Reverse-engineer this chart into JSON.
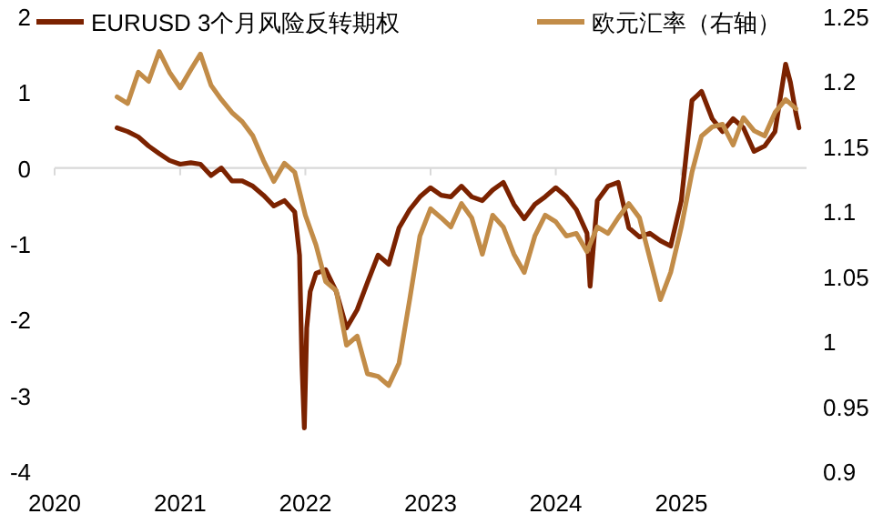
{
  "chart_data": {
    "type": "line",
    "legend": "top",
    "xlim": [
      "2020-01-01",
      "2026-01-01"
    ],
    "xticks": [
      "2020",
      "2021",
      "2022",
      "2023",
      "2024",
      "2025"
    ],
    "ylim": [
      -4,
      2
    ],
    "yticks": [
      -4,
      -3,
      -2,
      -1,
      0,
      1,
      2
    ],
    "y2lim": [
      0.9,
      1.25
    ],
    "y2ticks": [
      0.9,
      {
        "value": 0.95,
        "label": "0.95"
      },
      1,
      {
        "value": 1.05,
        "label": "1.05"
      },
      1.1,
      {
        "value": 1.15,
        "label": "1.15"
      },
      1.2,
      {
        "value": 1.25,
        "label": "1.25"
      }
    ],
    "series": [
      {
        "name": "EURUSD 3个月风险反转期权",
        "color": "#7b2200",
        "x": [
          "2020-07-01",
          "2020-08-01",
          "2020-09-01",
          "2020-10-01",
          "2020-11-01",
          "2020-12-01",
          "2021-01-01",
          "2021-02-01",
          "2021-03-01",
          "2021-04-01",
          "2021-05-01",
          "2021-06-01",
          "2021-07-01",
          "2021-08-01",
          "2021-09-01",
          "2021-10-01",
          "2021-11-01",
          "2021-12-01",
          "2021-12-15",
          "2021-12-22",
          "2021-12-29",
          "2022-01-05",
          "2022-01-15",
          "2022-02-01",
          "2022-03-01",
          "2022-04-01",
          "2022-05-01",
          "2022-06-01",
          "2022-07-01",
          "2022-08-01",
          "2022-09-01",
          "2022-10-01",
          "2022-11-01",
          "2022-12-01",
          "2023-01-01",
          "2023-02-01",
          "2023-03-01",
          "2023-04-01",
          "2023-05-01",
          "2023-06-01",
          "2023-07-01",
          "2023-08-01",
          "2023-09-01",
          "2023-10-01",
          "2023-11-01",
          "2023-12-01",
          "2024-01-01",
          "2024-02-01",
          "2024-03-01",
          "2024-04-01",
          "2024-04-10",
          "2024-05-01",
          "2024-06-01",
          "2024-07-01",
          "2024-08-01",
          "2024-09-01",
          "2024-10-01",
          "2024-11-01",
          "2024-12-01",
          "2025-01-01",
          "2025-02-01",
          "2025-03-01",
          "2025-04-01",
          "2025-05-01",
          "2025-06-01",
          "2025-07-01",
          "2025-08-01",
          "2025-09-01",
          "2025-10-01",
          "2025-11-01",
          "2025-11-15",
          "2025-12-01",
          "2025-12-10"
        ],
        "values": [
          0.53,
          0.48,
          0.41,
          0.29,
          0.19,
          0.1,
          0.05,
          0.07,
          0.05,
          -0.1,
          0,
          -0.17,
          -0.17,
          -0.24,
          -0.36,
          -0.5,
          -0.43,
          -0.58,
          -1.15,
          -2.59,
          -3.43,
          -2.11,
          -1.63,
          -1.39,
          -1.34,
          -1.63,
          -2.11,
          -1.87,
          -1.51,
          -1.15,
          -1.27,
          -0.79,
          -0.55,
          -0.38,
          -0.26,
          -0.36,
          -0.38,
          -0.24,
          -0.38,
          -0.43,
          -0.29,
          -0.19,
          -0.48,
          -0.67,
          -0.48,
          -0.38,
          -0.26,
          -0.38,
          -0.55,
          -0.86,
          -1.56,
          -0.43,
          -0.24,
          -0.19,
          -0.79,
          -0.91,
          -0.86,
          -0.96,
          -1.03,
          -0.43,
          0.89,
          1.01,
          0.65,
          0.48,
          0.65,
          0.53,
          0.22,
          0.29,
          0.48,
          1.37,
          1.13,
          0.72,
          0.53
        ]
      },
      {
        "name": "欧元汇率（右轴）",
        "color": "#c28c48",
        "axis": "y2",
        "x": [
          "2020-07-01",
          "2020-08-01",
          "2020-09-01",
          "2020-10-01",
          "2020-11-01",
          "2020-12-01",
          "2021-01-01",
          "2021-02-01",
          "2021-03-01",
          "2021-04-01",
          "2021-05-01",
          "2021-06-01",
          "2021-07-01",
          "2021-08-01",
          "2021-09-01",
          "2021-10-01",
          "2021-11-01",
          "2021-12-01",
          "2022-01-01",
          "2022-02-01",
          "2022-03-01",
          "2022-04-01",
          "2022-05-01",
          "2022-06-01",
          "2022-07-01",
          "2022-08-01",
          "2022-09-01",
          "2022-10-01",
          "2022-11-01",
          "2022-12-01",
          "2023-01-01",
          "2023-02-01",
          "2023-03-01",
          "2023-04-01",
          "2023-05-01",
          "2023-06-01",
          "2023-07-01",
          "2023-08-01",
          "2023-09-01",
          "2023-10-01",
          "2023-11-01",
          "2023-12-01",
          "2024-01-01",
          "2024-02-01",
          "2024-03-01",
          "2024-04-01",
          "2024-05-01",
          "2024-06-01",
          "2024-07-01",
          "2024-08-01",
          "2024-09-01",
          "2024-10-01",
          "2024-11-01",
          "2024-12-01",
          "2025-01-01",
          "2025-02-01",
          "2025-03-01",
          "2025-04-01",
          "2025-05-01",
          "2025-06-01",
          "2025-07-01",
          "2025-08-01",
          "2025-09-01",
          "2025-10-01",
          "2025-11-01",
          "2025-12-01"
        ],
        "values": [
          1.188,
          1.183,
          1.207,
          1.2,
          1.223,
          1.207,
          1.195,
          1.209,
          1.221,
          1.197,
          1.186,
          1.176,
          1.169,
          1.158,
          1.139,
          1.123,
          1.137,
          1.13,
          1.097,
          1.074,
          1.046,
          1.039,
          0.997,
          1.004,
          0.975,
          0.973,
          0.966,
          0.983,
          1.032,
          1.081,
          1.102,
          1.095,
          1.088,
          1.106,
          1.095,
          1.067,
          1.097,
          1.088,
          1.067,
          1.053,
          1.081,
          1.097,
          1.092,
          1.081,
          1.083,
          1.069,
          1.088,
          1.083,
          1.095,
          1.106,
          1.095,
          1.064,
          1.032,
          1.053,
          1.088,
          1.13,
          1.158,
          1.165,
          1.167,
          1.151,
          1.172,
          1.162,
          1.158,
          1.176,
          1.186,
          1.179
        ]
      }
    ]
  }
}
